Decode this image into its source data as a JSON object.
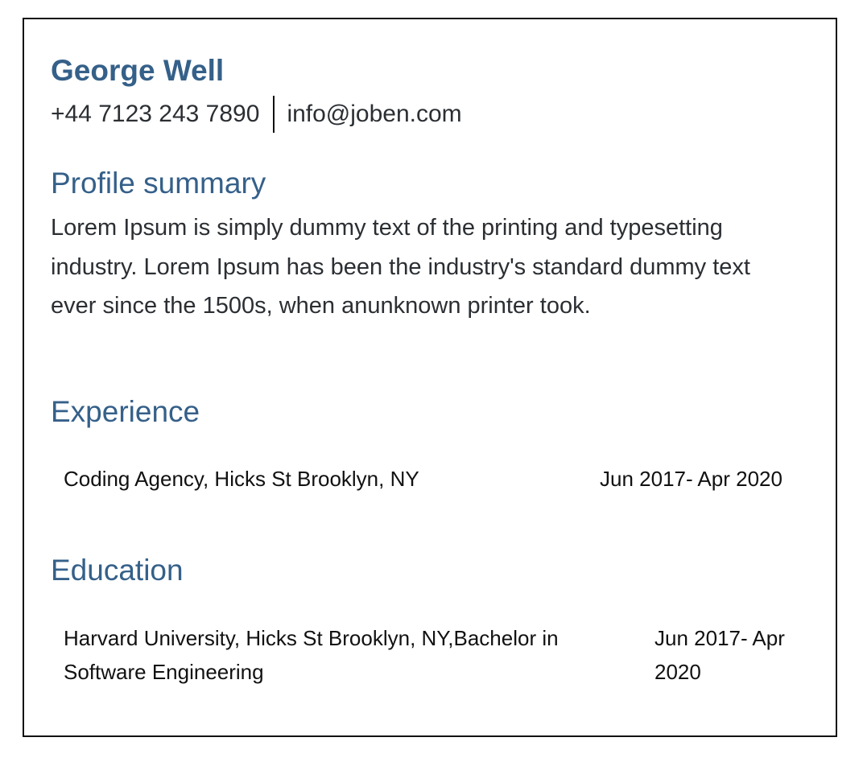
{
  "header": {
    "name": "George Well",
    "phone": "+44 7123 243 7890",
    "email": "info@joben.com"
  },
  "profile": {
    "title": "Profile summary",
    "text": "Lorem Ipsum is simply dummy text of the printing and typesetting industry. Lorem Ipsum has been the industry's standard dummy text ever since the 1500s, when anunknown printer took."
  },
  "experience": {
    "title": "Experience",
    "entries": [
      {
        "organization": "Coding Agency, Hicks St Brooklyn, NY",
        "dates": "Jun 2017- Apr 2020"
      }
    ]
  },
  "education": {
    "title": "Education",
    "entries": [
      {
        "organization": "Harvard University, Hicks St Brooklyn, NY,Bachelor in Software Engineering",
        "dates": "Jun 2017- Apr 2020"
      }
    ]
  }
}
